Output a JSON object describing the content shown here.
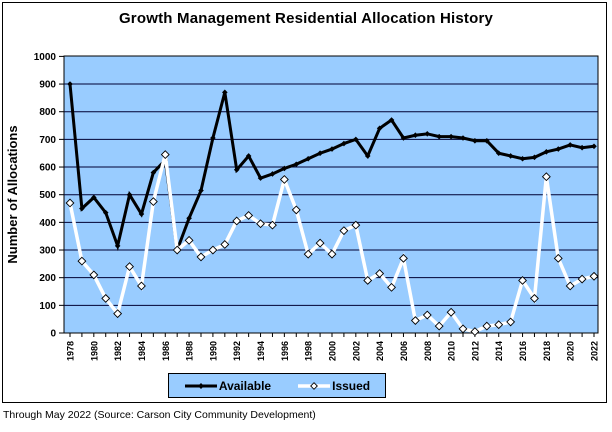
{
  "chart": {
    "title": "Growth Management Residential Allocation History",
    "y_axis_title": "Number of Allocations",
    "footer": "Through May 2022 (Source: Carson City Community Development)",
    "legend": [
      {
        "label": "Available"
      },
      {
        "label": "Issued"
      }
    ]
  },
  "chart_data": {
    "type": "line",
    "title": "Growth Management Residential Allocation History",
    "xlabel": "",
    "ylabel": "Number of Allocations",
    "ylim": [
      0,
      1000
    ],
    "y_tick_step": 100,
    "x_label_every": 2,
    "grid": "horizontal",
    "legend_position": "bottom-center",
    "plot_bg_color": "#99CCFF",
    "gridline_color": "#000033",
    "x": [
      1978,
      1979,
      1980,
      1981,
      1982,
      1983,
      1984,
      1985,
      1986,
      1987,
      1988,
      1989,
      1990,
      1991,
      1992,
      1993,
      1994,
      1995,
      1996,
      1997,
      1998,
      1999,
      2000,
      2001,
      2002,
      2003,
      2004,
      2005,
      2006,
      2007,
      2008,
      2009,
      2010,
      2011,
      2012,
      2013,
      2014,
      2015,
      2016,
      2017,
      2018,
      2019,
      2020,
      2021,
      2022
    ],
    "series": [
      {
        "name": "Available",
        "color": "#000000",
        "marker": "diamond",
        "values": [
          900,
          450,
          490,
          435,
          315,
          500,
          430,
          580,
          625,
          300,
          415,
          515,
          705,
          870,
          590,
          640,
          560,
          575,
          595,
          610,
          630,
          650,
          665,
          685,
          700,
          640,
          740,
          770,
          705,
          715,
          720,
          710,
          710,
          705,
          695,
          695,
          650,
          640,
          630,
          635,
          655,
          665,
          680,
          670,
          675
        ]
      },
      {
        "name": "Issued",
        "color": "#FFFFFF",
        "marker": "diamond-outlined",
        "values": [
          470,
          260,
          210,
          125,
          70,
          240,
          170,
          475,
          645,
          300,
          335,
          275,
          300,
          320,
          405,
          425,
          395,
          390,
          555,
          445,
          285,
          325,
          285,
          370,
          390,
          190,
          215,
          165,
          270,
          45,
          65,
          25,
          75,
          15,
          5,
          25,
          30,
          40,
          190,
          125,
          565,
          270,
          170,
          195,
          205
        ]
      }
    ]
  }
}
